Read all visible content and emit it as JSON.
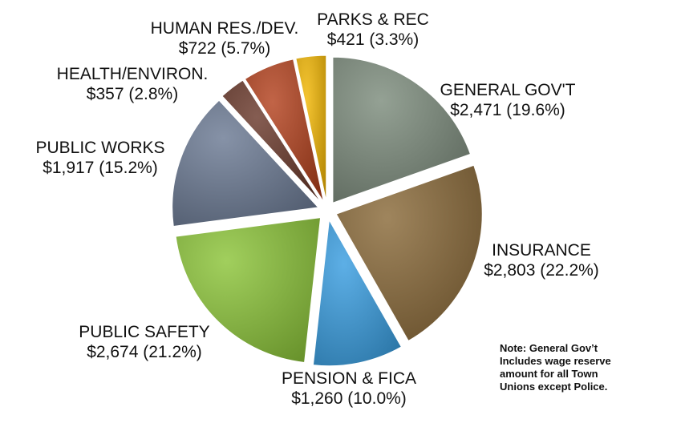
{
  "chart_data": {
    "type": "pie",
    "categories": [
      "GENERAL GOV'T",
      "INSURANCE",
      "PENSION & FICA",
      "PUBLIC SAFETY",
      "PUBLIC WORKS",
      "HEALTH/ENVIRON.",
      "HUMAN RES./DEV.",
      "PARKS & REC"
    ],
    "values": [
      2471,
      2803,
      1260,
      2674,
      1917,
      357,
      722,
      421
    ],
    "value_labels": [
      "$2,471  (19.6%)",
      "$2,803  (22.2%)",
      "$1,260  (10.0%)",
      "$2,674  (21.2%)",
      "$1,917  (15.2%)",
      "$357  (2.8%)",
      "$722  (5.7%)",
      "$421  (3.3%)"
    ],
    "colors": [
      "#7d8c7d",
      "#8a6a3a",
      "#3a9ee0",
      "#8cc43a",
      "#6c7a94",
      "#6a3a2c",
      "#b3421e",
      "#f2b705"
    ],
    "exploded": true,
    "legend": "none"
  },
  "note": {
    "lines": [
      "Note:  General Gov’t",
      "Includes wage reserve",
      "amount for all Town",
      "Unions except Police."
    ]
  }
}
